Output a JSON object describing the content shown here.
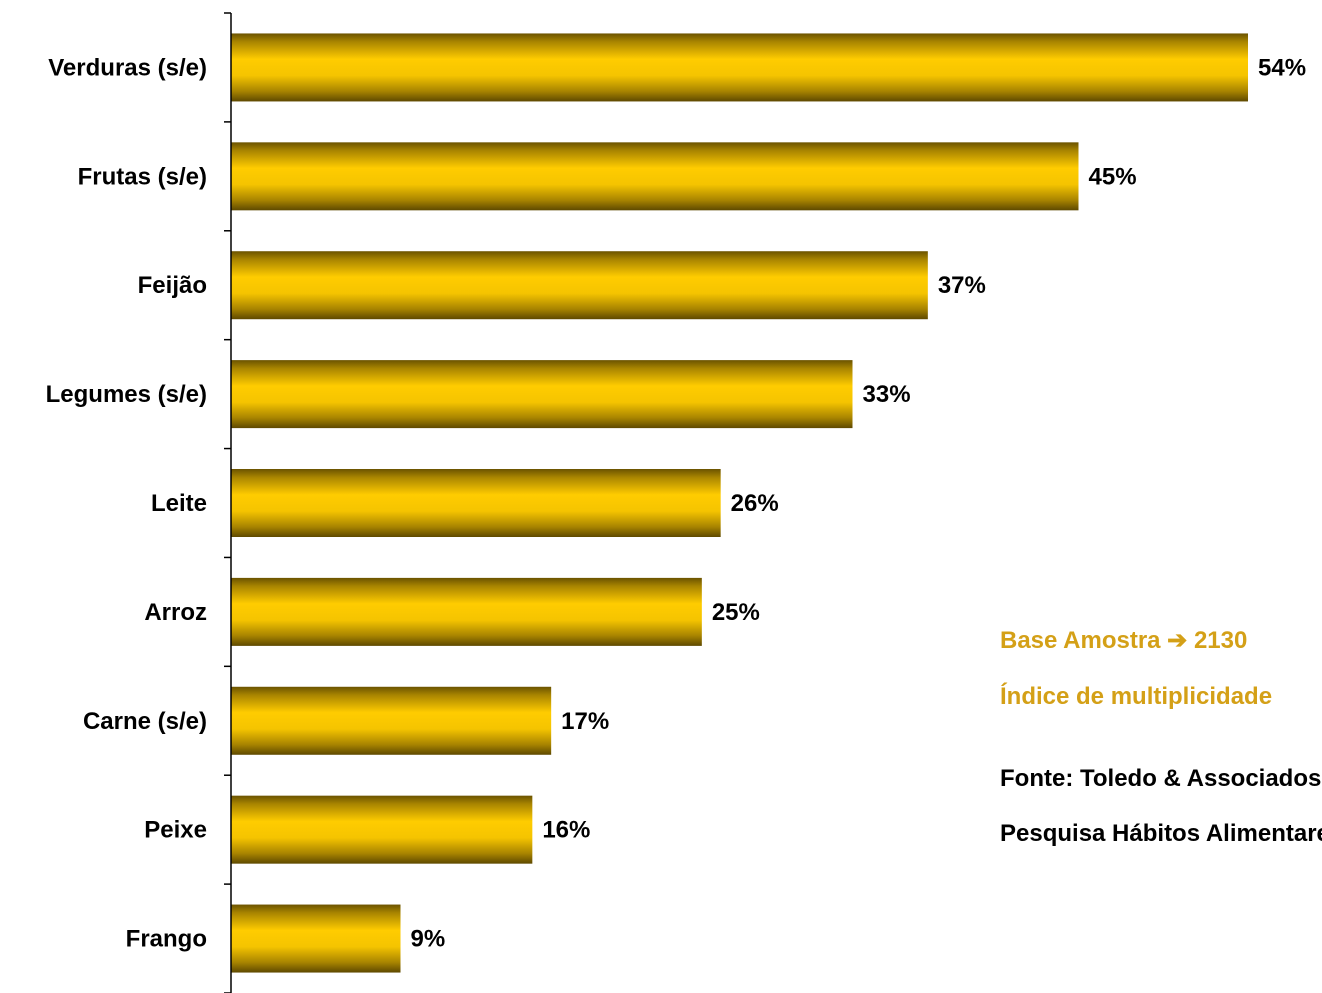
{
  "chart_data": {
    "type": "bar",
    "orientation": "horizontal",
    "categories": [
      "Verduras (s/e)",
      "Frutas (s/e)",
      "Feijão",
      "Legumes (s/e)",
      "Leite",
      "Arroz",
      "Carne (s/e)",
      "Peixe",
      "Frango"
    ],
    "values": [
      54,
      45,
      37,
      33,
      26,
      25,
      17,
      16,
      9
    ],
    "value_labels": [
      "54%",
      "45%",
      "37%",
      "33%",
      "26%",
      "25%",
      "17%",
      "16%",
      "9%"
    ],
    "xlim": [
      0,
      58
    ],
    "grid": false,
    "bar_color": "#ffcc00",
    "bar_shade_color": "#6b5300"
  },
  "notes": {
    "base_line": "Base Amostra ➔ 2130",
    "index_line": "Índice de multiplicidade",
    "source_line": "Fonte: Toledo & Associados",
    "survey_line": "Pesquisa Hábitos Alimentares"
  },
  "colors": {
    "note_accent": "#d4a017",
    "text": "#000000"
  }
}
